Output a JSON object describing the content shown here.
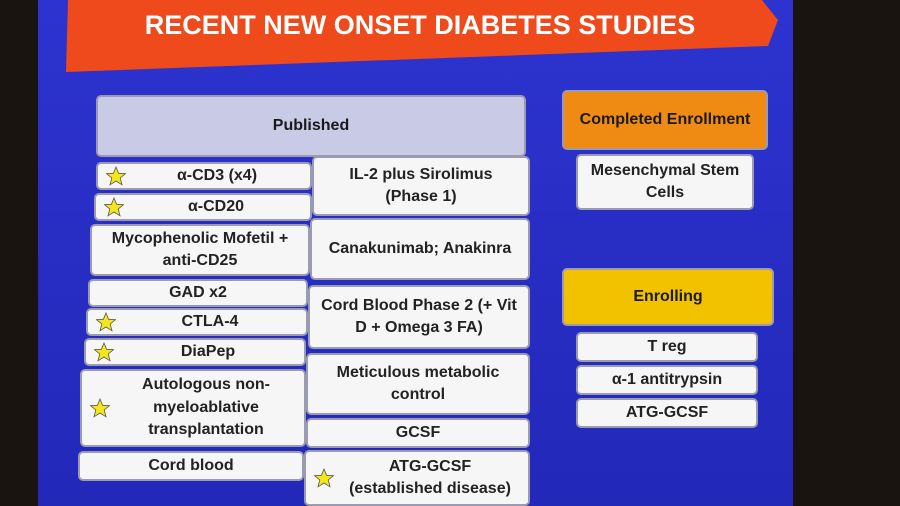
{
  "title": "RECENT NEW ONSET DIABETES STUDIES",
  "published": {
    "heading": "Published",
    "left": [
      {
        "label": "α-CD3 (x4)",
        "star": true
      },
      {
        "label": "α-CD20",
        "star": true
      },
      {
        "label": "Mycophenolic Mofetil + anti-CD25",
        "star": false
      },
      {
        "label": "GAD x2",
        "star": false
      },
      {
        "label": "CTLA-4",
        "star": true
      },
      {
        "label": "DiaPep",
        "star": true
      },
      {
        "label": "Autologous non-myeloablative transplantation",
        "star": true
      },
      {
        "label": "Cord blood",
        "star": false
      }
    ],
    "right": [
      {
        "label": "IL-2 plus Sirolimus (Phase 1)",
        "star": false
      },
      {
        "label": "Canakunimab; Anakinra",
        "star": false
      },
      {
        "label": "Cord Blood Phase 2 (+ Vit D + Omega 3 FA)",
        "star": false
      },
      {
        "label": "Meticulous metabolic control",
        "star": false
      },
      {
        "label": "GCSF",
        "star": false
      },
      {
        "label": "ATG-GCSF (established disease)",
        "star": true
      }
    ]
  },
  "completed": {
    "heading": "Completed Enrollment",
    "items": [
      "Mesenchymal Stem Cells"
    ]
  },
  "enrolling": {
    "heading": "Enrolling",
    "items": [
      "T reg",
      "α-1 antitrypsin",
      "ATG-GCSF"
    ]
  }
}
